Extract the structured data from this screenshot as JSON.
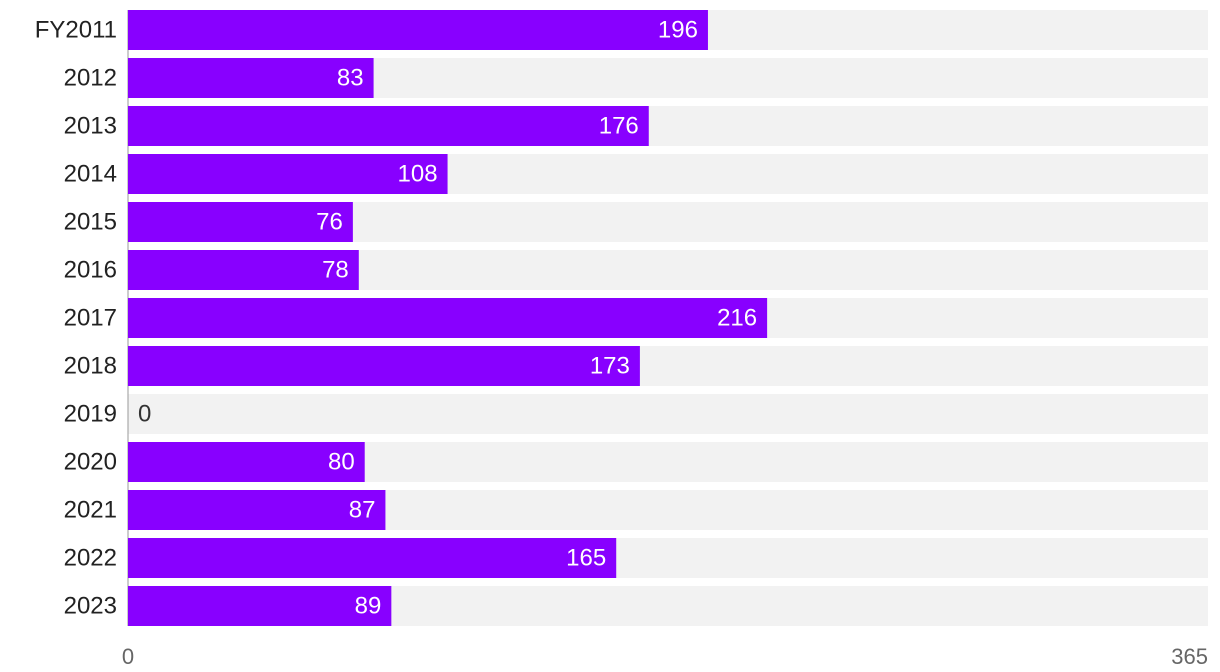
{
  "chart_data": {
    "type": "bar",
    "orientation": "horizontal",
    "categories": [
      "FY2011",
      "2012",
      "2013",
      "2014",
      "2015",
      "2016",
      "2017",
      "2018",
      "2019",
      "2020",
      "2021",
      "2022",
      "2023"
    ],
    "values": [
      196,
      83,
      176,
      108,
      76,
      78,
      216,
      173,
      0,
      80,
      87,
      165,
      89
    ],
    "color": "#8800ff",
    "xlim": [
      0,
      365
    ],
    "xticks": [
      0,
      365
    ]
  }
}
